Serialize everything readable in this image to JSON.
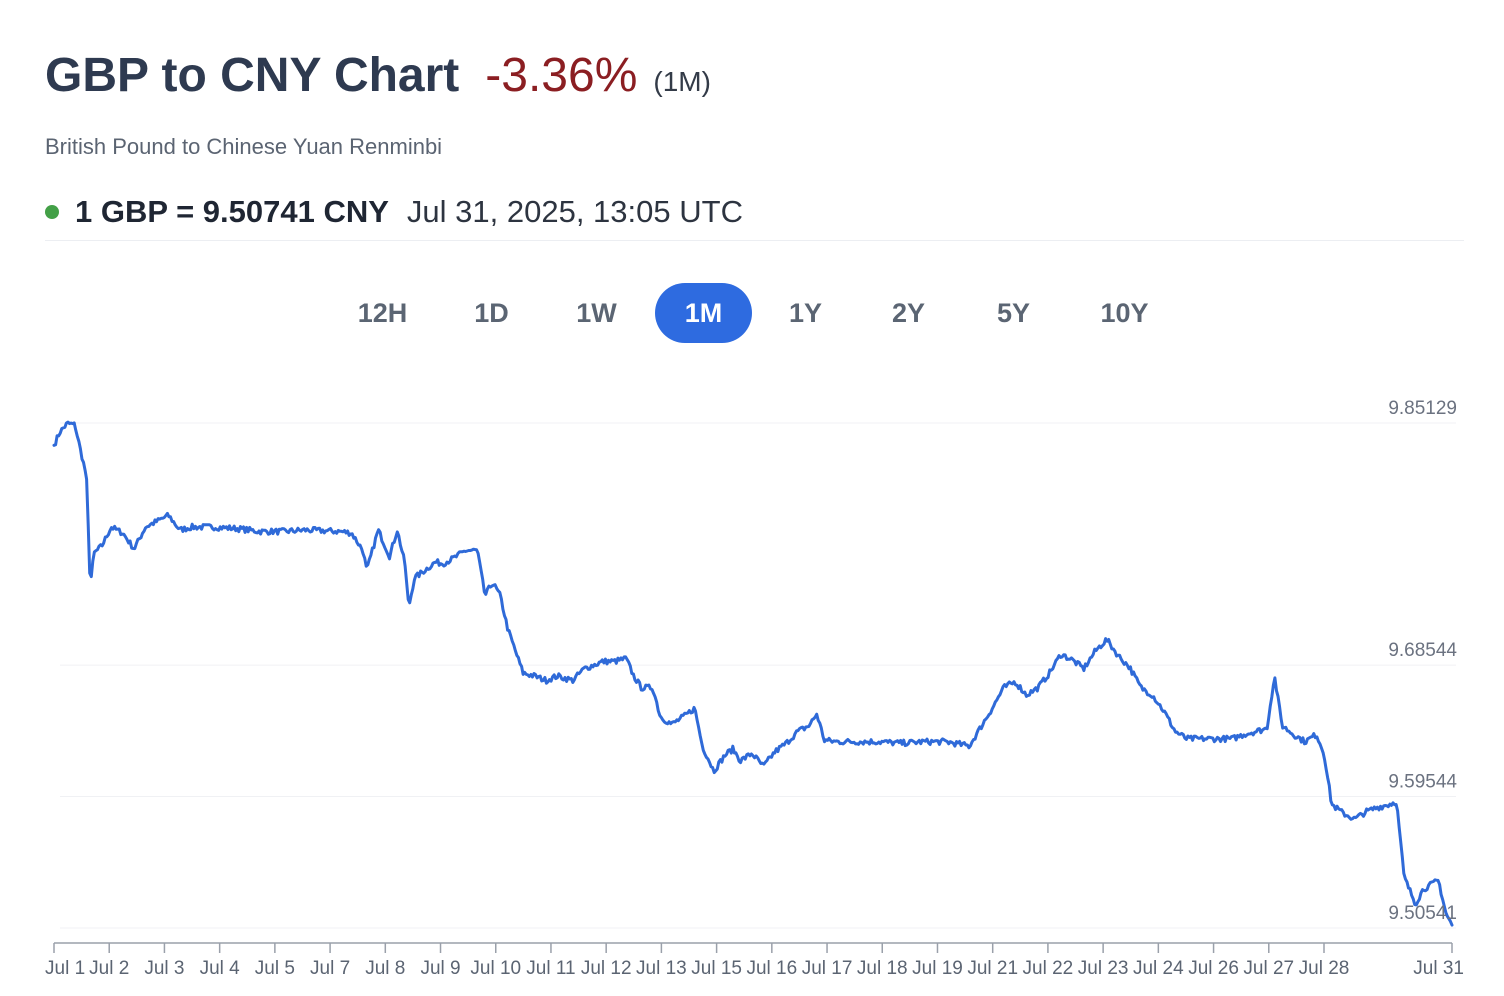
{
  "header": {
    "title": "GBP to CNY Chart",
    "change": "-3.36%",
    "period": "(1M)",
    "subtitle": "British Pound to Chinese Yuan Renminbi",
    "rate": "1 GBP = 9.50741 CNY",
    "timestamp": "Jul 31, 2025, 13:05 UTC"
  },
  "tabs": [
    {
      "label": "12H",
      "active": false
    },
    {
      "label": "1D",
      "active": false
    },
    {
      "label": "1W",
      "active": false
    },
    {
      "label": "1M",
      "active": true
    },
    {
      "label": "1Y",
      "active": false
    },
    {
      "label": "2Y",
      "active": false
    },
    {
      "label": "5Y",
      "active": false
    },
    {
      "label": "10Y",
      "active": false
    }
  ],
  "colors": {
    "line": "#2f6ad8",
    "active_tab": "#2e6be0",
    "negative_change": "#8b1e22",
    "live_dot": "#43a047"
  },
  "chart_data": {
    "type": "line",
    "title": "",
    "xlabel": "",
    "ylabel": "",
    "ylim": [
      9.50541,
      9.85129
    ],
    "yticks": [
      "9.85129",
      "9.68544",
      "9.59544",
      "9.50541"
    ],
    "x_tick_labels": [
      "Jul 1",
      "Jul 2",
      "Jul 3",
      "Jul 4",
      "Jul 5",
      "Jul 7",
      "Jul 8",
      "Jul 9",
      "Jul 10",
      "Jul 11",
      "Jul 12",
      "Jul 13",
      "Jul 15",
      "Jul 16",
      "Jul 17",
      "Jul 18",
      "Jul 19",
      "Jul 21",
      "Jul 22",
      "Jul 23",
      "Jul 24",
      "Jul 26",
      "Jul 27",
      "Jul 28",
      "Jul 31"
    ],
    "series": [
      {
        "points": [
          [
            "Jul 1 00:00",
            9.836
          ],
          [
            "Jul 1 03:00",
            9.845
          ],
          [
            "Jul 1 07:00",
            9.851
          ],
          [
            "Jul 1 11:00",
            9.85
          ],
          [
            "Jul 1 14:00",
            9.832
          ],
          [
            "Jul 1 17:00",
            9.815
          ],
          [
            "Jul 1 19:00",
            9.74
          ],
          [
            "Jul 1 21:00",
            9.762
          ],
          [
            "Jul 2 01:00",
            9.767
          ],
          [
            "Jul 2 06:00",
            9.78
          ],
          [
            "Jul 2 12:00",
            9.776
          ],
          [
            "Jul 2 18:00",
            9.765
          ],
          [
            "Jul 3 00:00",
            9.78
          ],
          [
            "Jul 3 06:00",
            9.784
          ],
          [
            "Jul 3 12:00",
            9.788
          ],
          [
            "Jul 3 18:00",
            9.778
          ],
          [
            "Jul 4 00:00",
            9.78
          ],
          [
            "Jul 4 12:00",
            9.78
          ],
          [
            "Jul 5 00:00",
            9.779
          ],
          [
            "Jul 5 12:00",
            9.777
          ],
          [
            "Jul 6 00:00",
            9.777
          ],
          [
            "Jul 6 12:00",
            9.778
          ],
          [
            "Jul 7 06:00",
            9.777
          ],
          [
            "Jul 7 12:00",
            9.776
          ],
          [
            "Jul 7 18:00",
            9.764
          ],
          [
            "Jul 7 20:00",
            9.75
          ],
          [
            "Jul 8 02:00",
            9.778
          ],
          [
            "Jul 8 08:00",
            9.76
          ],
          [
            "Jul 8 12:00",
            9.778
          ],
          [
            "Jul 8 16:00",
            9.755
          ],
          [
            "Jul 8 18:00",
            9.725
          ],
          [
            "Jul 8 21:00",
            9.745
          ],
          [
            "Jul 9 02:00",
            9.75
          ],
          [
            "Jul 9 08:00",
            9.756
          ],
          [
            "Jul 9 12:00",
            9.755
          ],
          [
            "Jul 9 18:00",
            9.759
          ],
          [
            "Jul 10 00:00",
            9.764
          ],
          [
            "Jul 10 06:00",
            9.764
          ],
          [
            "Jul 10 10:00",
            9.733
          ],
          [
            "Jul 10 14:00",
            9.742
          ],
          [
            "Jul 10 18:00",
            9.733
          ],
          [
            "Jul 10 22:00",
            9.71
          ],
          [
            "Jul 11 02:00",
            9.695
          ],
          [
            "Jul 11 06:00",
            9.68
          ],
          [
            "Jul 11 12:00",
            9.678
          ],
          [
            "Jul 11 18:00",
            9.675
          ],
          [
            "Jul 12 00:00",
            9.678
          ],
          [
            "Jul 12 08:00",
            9.675
          ],
          [
            "Jul 12 14:00",
            9.683
          ],
          [
            "Jul 12 20:00",
            9.686
          ],
          [
            "Jul 13 00:00",
            9.688
          ],
          [
            "Jul 13 06:00",
            9.688
          ],
          [
            "Jul 13 12:00",
            9.69
          ],
          [
            "Jul 13 16:00",
            9.678
          ],
          [
            "Jul 13 20:00",
            9.67
          ],
          [
            "Jul 14 02:00",
            9.67
          ],
          [
            "Jul 14 06:00",
            9.65
          ],
          [
            "Jul 14 12:00",
            9.645
          ],
          [
            "Jul 14 18:00",
            9.65
          ],
          [
            "Jul 15 00:00",
            9.656
          ],
          [
            "Jul 15 04:00",
            9.63
          ],
          [
            "Jul 15 10:00",
            9.613
          ],
          [
            "Jul 15 16:00",
            9.624
          ],
          [
            "Jul 15 20:00",
            9.628
          ],
          [
            "Jul 16 00:00",
            9.62
          ],
          [
            "Jul 16 06:00",
            9.625
          ],
          [
            "Jul 16 12:00",
            9.616
          ],
          [
            "Jul 16 18:00",
            9.626
          ],
          [
            "Jul 17 00:00",
            9.632
          ],
          [
            "Jul 17 06:00",
            9.64
          ],
          [
            "Jul 17 12:00",
            9.644
          ],
          [
            "Jul 17 16:00",
            9.652
          ],
          [
            "Jul 17 20:00",
            9.634
          ],
          [
            "Jul 18 02:00",
            9.633
          ],
          [
            "Jul 18 12:00",
            9.633
          ],
          [
            "Jul 19 00:00",
            9.633
          ],
          [
            "Jul 19 12:00",
            9.632
          ],
          [
            "Jul 20 00:00",
            9.633
          ],
          [
            "Jul 20 12:00",
            9.633
          ],
          [
            "Jul 21 00:00",
            9.63
          ],
          [
            "Jul 21 06:00",
            9.643
          ],
          [
            "Jul 21 12:00",
            9.656
          ],
          [
            "Jul 21 18:00",
            9.67
          ],
          [
            "Jul 22 00:00",
            9.674
          ],
          [
            "Jul 22 06:00",
            9.665
          ],
          [
            "Jul 22 12:00",
            9.67
          ],
          [
            "Jul 22 18:00",
            9.68
          ],
          [
            "Jul 23 00:00",
            9.693
          ],
          [
            "Jul 23 06:00",
            9.689
          ],
          [
            "Jul 23 12:00",
            9.683
          ],
          [
            "Jul 23 18:00",
            9.695
          ],
          [
            "Jul 24 00:00",
            9.703
          ],
          [
            "Jul 24 06:00",
            9.692
          ],
          [
            "Jul 24 12:00",
            9.684
          ],
          [
            "Jul 24 18:00",
            9.67
          ],
          [
            "Jul 25 00:00",
            9.665
          ],
          [
            "Jul 25 06:00",
            9.654
          ],
          [
            "Jul 25 12:00",
            9.64
          ],
          [
            "Jul 25 18:00",
            9.635
          ],
          [
            "Jul 26 06:00",
            9.635
          ],
          [
            "Jul 26 18:00",
            9.635
          ],
          [
            "Jul 27 00:00",
            9.638
          ],
          [
            "Jul 27 06:00",
            9.64
          ],
          [
            "Jul 27 12:00",
            9.642
          ],
          [
            "Jul 27 16:00",
            9.678
          ],
          [
            "Jul 27 20:00",
            9.644
          ],
          [
            "Jul 28 02:00",
            9.638
          ],
          [
            "Jul 28 08:00",
            9.633
          ],
          [
            "Jul 28 14:00",
            9.638
          ],
          [
            "Jul 28 18:00",
            9.625
          ],
          [
            "Jul 28 22:00",
            9.59
          ],
          [
            "Jul 29 04:00",
            9.584
          ],
          [
            "Jul 29 10:00",
            9.58
          ],
          [
            "Jul 29 16:00",
            9.585
          ],
          [
            "Jul 29 22:00",
            9.588
          ],
          [
            "Jul 30 04:00",
            9.59
          ],
          [
            "Jul 30 08:00",
            9.592
          ],
          [
            "Jul 30 12:00",
            9.54
          ],
          [
            "Jul 30 18:00",
            9.522
          ],
          [
            "Jul 30 22:00",
            9.532
          ],
          [
            "Jul 31 06:00",
            9.538
          ],
          [
            "Jul 31 10:00",
            9.515
          ],
          [
            "Jul 31 13:05",
            9.50741
          ]
        ]
      }
    ],
    "grid": true,
    "legend": "none"
  }
}
